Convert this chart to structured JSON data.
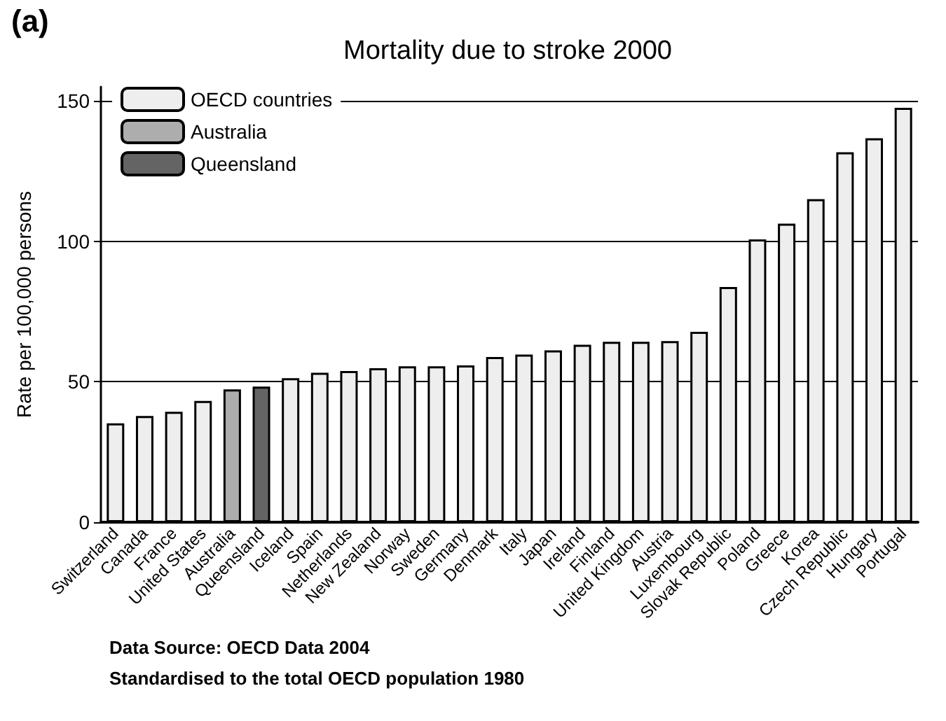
{
  "chart_data": {
    "type": "bar",
    "title": "Mortality due to stroke 2000",
    "ylabel": "Rate per 100,000 persons",
    "annotations": [
      "(a)",
      "Data Source: OECD Data 2004",
      "Standardised to the total OECD population 1980"
    ],
    "categories": [
      "Switzerland",
      "Canada",
      "France",
      "United States",
      "Australia",
      "Queensland",
      "Iceland",
      "Spain",
      "Netherlands",
      "New Zealand",
      "Norway",
      "Sweden",
      "Germany",
      "Denmark",
      "Italy",
      "Japan",
      "Ireland",
      "Finland",
      "United Kingdom",
      "Austria",
      "Luxembourg",
      "Slovak Republic",
      "Poland",
      "Greece",
      "Korea",
      "Czech Republic",
      "Hungary",
      "Portugal"
    ],
    "series": [
      {
        "name": "OECD countries",
        "color": "#eeeeee",
        "values": [
          35.2,
          37.8,
          39.3,
          43.2,
          null,
          null,
          51.3,
          53.2,
          53.8,
          54.8,
          55.5,
          55.5,
          55.8,
          58.8,
          59.7,
          61.2,
          63.2,
          64.2,
          64.2,
          64.5,
          67.8,
          83.7,
          100.7,
          106.3,
          115,
          131.7,
          136.7,
          147.5
        ]
      },
      {
        "name": "Australia",
        "color": "#adadad",
        "values": [
          null,
          null,
          null,
          null,
          47.3,
          null,
          null,
          null,
          null,
          null,
          null,
          null,
          null,
          null,
          null,
          null,
          null,
          null,
          null,
          null,
          null,
          null,
          null,
          null,
          null,
          null,
          null,
          null
        ]
      },
      {
        "name": "Queensland",
        "color": "#646464",
        "values": [
          null,
          null,
          null,
          null,
          null,
          48.3,
          null,
          null,
          null,
          null,
          null,
          null,
          null,
          null,
          null,
          null,
          null,
          null,
          null,
          null,
          null,
          null,
          null,
          null,
          null,
          null,
          null,
          null
        ]
      }
    ],
    "ylim": [
      0,
      155
    ],
    "yticks": [
      0,
      50,
      100,
      150
    ],
    "grid": "y",
    "legend": "top left"
  }
}
